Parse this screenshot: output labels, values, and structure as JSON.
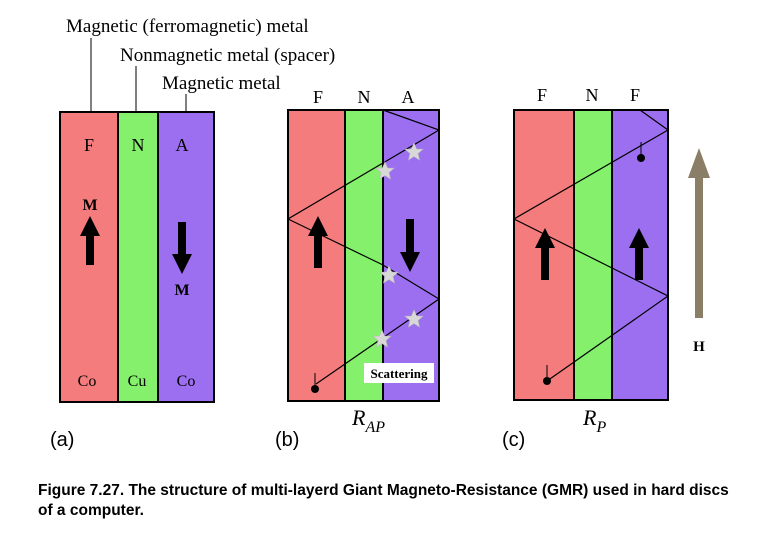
{
  "colors": {
    "ferromagnetic": "#f47c7c",
    "spacer": "#84f06c",
    "antiparallel": "#9b6ff0",
    "field_arrow": "#8b7e66",
    "scatter_star": "#d8d8d8",
    "outline": "#000000"
  },
  "callouts": {
    "magnetic_ferro": "Magnetic (ferromagnetic) metal",
    "nonmagnetic_spacer": "Nonmagnetic metal (spacer)",
    "magnetic_metal": "Magnetic metal"
  },
  "panel_a": {
    "label": "(a)",
    "layers": [
      {
        "letter": "F",
        "material": "Co"
      },
      {
        "letter": "N",
        "material": "Cu"
      },
      {
        "letter": "A",
        "material": "Co"
      }
    ],
    "magnetization_label_top": "M",
    "magnetization_label_bottom": "M",
    "arrows": [
      "up-arrow-icon",
      "down-arrow-icon"
    ]
  },
  "panel_b": {
    "label": "(b)",
    "layers": [
      "F",
      "N",
      "A"
    ],
    "resistance_main": "R",
    "resistance_sub": "AP",
    "scattering_label": "Scattering",
    "stars": [
      "star-icon",
      "star-icon",
      "star-icon",
      "star-icon",
      "star-icon",
      "star-icon"
    ]
  },
  "panel_c": {
    "label": "(c)",
    "layers": [
      "F",
      "N",
      "F"
    ],
    "resistance_main": "R",
    "resistance_sub": "P",
    "field_label": "H"
  },
  "caption": "Figure 7.27. The structure of multi-layerd Giant Magneto-Resistance (GMR) used in hard discs of a computer."
}
